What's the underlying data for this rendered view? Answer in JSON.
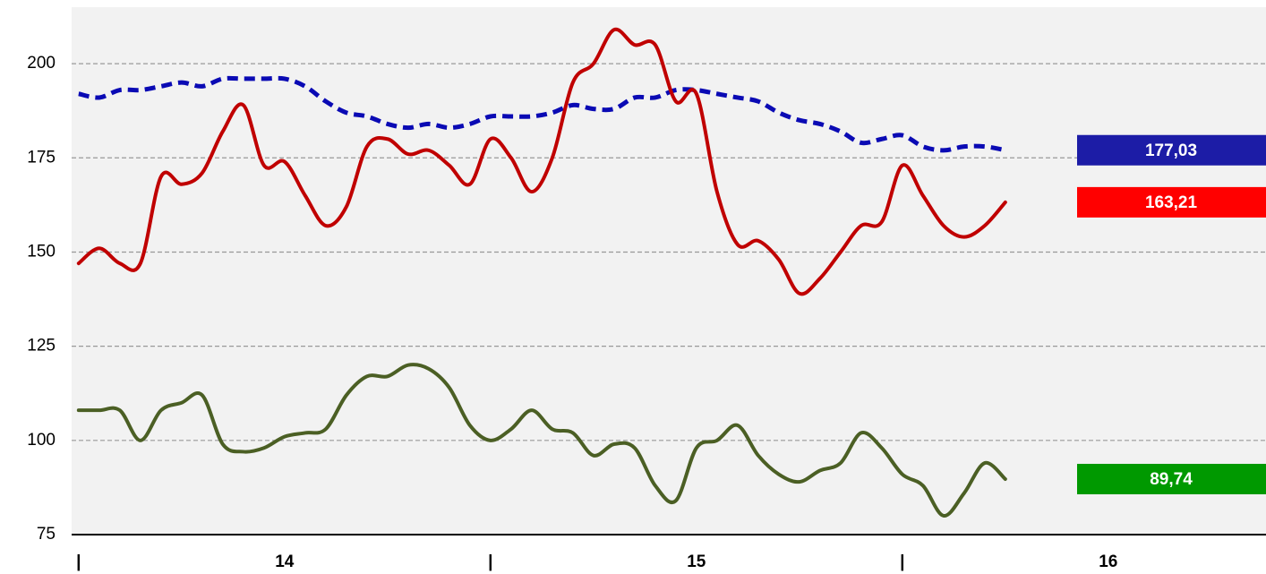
{
  "chart_data": {
    "type": "line",
    "x": [
      14.0,
      14.05,
      14.1,
      14.15,
      14.2,
      14.25,
      14.3,
      14.35,
      14.4,
      14.45,
      14.5,
      14.55,
      14.6,
      14.65,
      14.7,
      14.75,
      14.8,
      14.85,
      14.9,
      14.95,
      15.0,
      15.05,
      15.1,
      15.15,
      15.2,
      15.25,
      15.3,
      15.35,
      15.4,
      15.45,
      15.5,
      15.55,
      15.6,
      15.65,
      15.7,
      15.75,
      15.8,
      15.85,
      15.9,
      15.95,
      16.0,
      16.05,
      16.1,
      16.15,
      16.2,
      16.25
    ],
    "series": [
      {
        "name": "blue",
        "color": "#0a0ab4",
        "dashed": true,
        "label_color": "#1c1ca6",
        "values": [
          192,
          191,
          193,
          193,
          194,
          195,
          194,
          196,
          196,
          196,
          196,
          194,
          190,
          187,
          186,
          184,
          183,
          184,
          183,
          184,
          186,
          186,
          186,
          187,
          189,
          188,
          188,
          191,
          191,
          193,
          193,
          192,
          191,
          190,
          187,
          185,
          184,
          182,
          179,
          180,
          181,
          178,
          177,
          178,
          178,
          177.03
        ],
        "value_labels": [
          null,
          null,
          null,
          null,
          null,
          null,
          null,
          null,
          null,
          null,
          null,
          null,
          null,
          null,
          null,
          null,
          null,
          null,
          null,
          null,
          null,
          null,
          null,
          null,
          null,
          null,
          null,
          null,
          null,
          null,
          null,
          null,
          null,
          null,
          null,
          null,
          null,
          null,
          null,
          null,
          null,
          null,
          null,
          null,
          null,
          "177,03"
        ]
      },
      {
        "name": "red",
        "color": "#c00000",
        "dashed": false,
        "label_color": "#ff0000",
        "values": [
          147,
          151,
          147,
          147,
          170,
          168,
          171,
          182,
          189,
          173,
          174,
          165,
          157,
          162,
          178,
          180,
          176,
          177,
          173,
          168,
          180,
          175,
          166,
          175,
          195,
          200,
          209,
          205,
          205,
          190,
          192,
          166,
          152,
          153,
          148,
          139,
          143,
          150,
          157,
          158,
          173,
          165,
          157,
          154,
          157,
          163.21
        ],
        "value_labels": [
          null,
          null,
          null,
          null,
          null,
          null,
          null,
          null,
          null,
          null,
          null,
          null,
          null,
          null,
          null,
          null,
          null,
          null,
          null,
          null,
          null,
          null,
          null,
          null,
          null,
          null,
          null,
          null,
          null,
          null,
          null,
          null,
          null,
          null,
          null,
          null,
          null,
          null,
          null,
          null,
          null,
          null,
          null,
          null,
          null,
          "163,21"
        ]
      },
      {
        "name": "green",
        "color": "#4b5f24",
        "dashed": false,
        "label_color": "#009900",
        "values": [
          108,
          108,
          108,
          100,
          108,
          110,
          112,
          99,
          97,
          98,
          101,
          102,
          103,
          112,
          117,
          117,
          120,
          119,
          114,
          104,
          100,
          103,
          108,
          103,
          102,
          96,
          99,
          98,
          88,
          84,
          98,
          100,
          104,
          96,
          91,
          89,
          92,
          94,
          102,
          98,
          91,
          88,
          80,
          86,
          94,
          89.74
        ],
        "value_labels": [
          null,
          null,
          null,
          null,
          null,
          null,
          null,
          null,
          null,
          null,
          null,
          null,
          null,
          null,
          null,
          null,
          null,
          null,
          null,
          null,
          null,
          null,
          null,
          null,
          null,
          null,
          null,
          null,
          null,
          null,
          null,
          null,
          null,
          null,
          null,
          null,
          null,
          null,
          null,
          null,
          null,
          null,
          null,
          null,
          null,
          "89,74"
        ]
      }
    ],
    "xlim": [
      13.983,
      16.883
    ],
    "xticks": [
      {
        "value": 14,
        "label": "|"
      },
      {
        "value": 14.5,
        "label": "14"
      },
      {
        "value": 15,
        "label": "|"
      },
      {
        "value": 15.5,
        "label": "15"
      },
      {
        "value": 16,
        "label": "|"
      },
      {
        "value": 16.5,
        "label": "16"
      }
    ],
    "ylim": [
      75,
      215
    ],
    "yticks": [
      75,
      100,
      125,
      150,
      175,
      200
    ],
    "grid": true
  }
}
